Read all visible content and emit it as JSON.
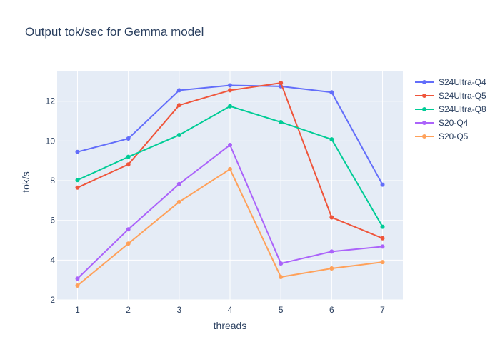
{
  "chart_data": {
    "type": "line",
    "title": "Output tok/sec for Gemma model",
    "xlabel": "threads",
    "ylabel": "tok/s",
    "x": [
      1,
      2,
      3,
      4,
      5,
      6,
      7
    ],
    "xlim": [
      0.6,
      7.4
    ],
    "ylim": [
      2,
      13.5
    ],
    "yticks": [
      2,
      4,
      6,
      8,
      10,
      12
    ],
    "grid": true,
    "legend_position": "top-right",
    "series": [
      {
        "name": "S24Ultra-Q4",
        "color": "#636efa",
        "values": [
          9.45,
          10.12,
          12.55,
          12.8,
          12.75,
          12.45,
          7.8
        ]
      },
      {
        "name": "S24Ultra-Q5",
        "color": "#EF553B",
        "values": [
          7.65,
          8.82,
          11.8,
          12.55,
          12.92,
          6.15,
          5.1
        ]
      },
      {
        "name": "S24Ultra-Q8",
        "color": "#00cc96",
        "values": [
          8.03,
          9.2,
          10.3,
          11.75,
          10.95,
          10.08,
          5.68
        ]
      },
      {
        "name": "S20-Q4",
        "color": "#ab63fa",
        "values": [
          3.07,
          5.55,
          7.83,
          9.8,
          3.83,
          4.43,
          4.68
        ]
      },
      {
        "name": "S20-Q5",
        "color": "#FFA15A",
        "values": [
          2.72,
          4.83,
          6.93,
          8.58,
          3.15,
          3.58,
          3.9
        ]
      }
    ]
  }
}
